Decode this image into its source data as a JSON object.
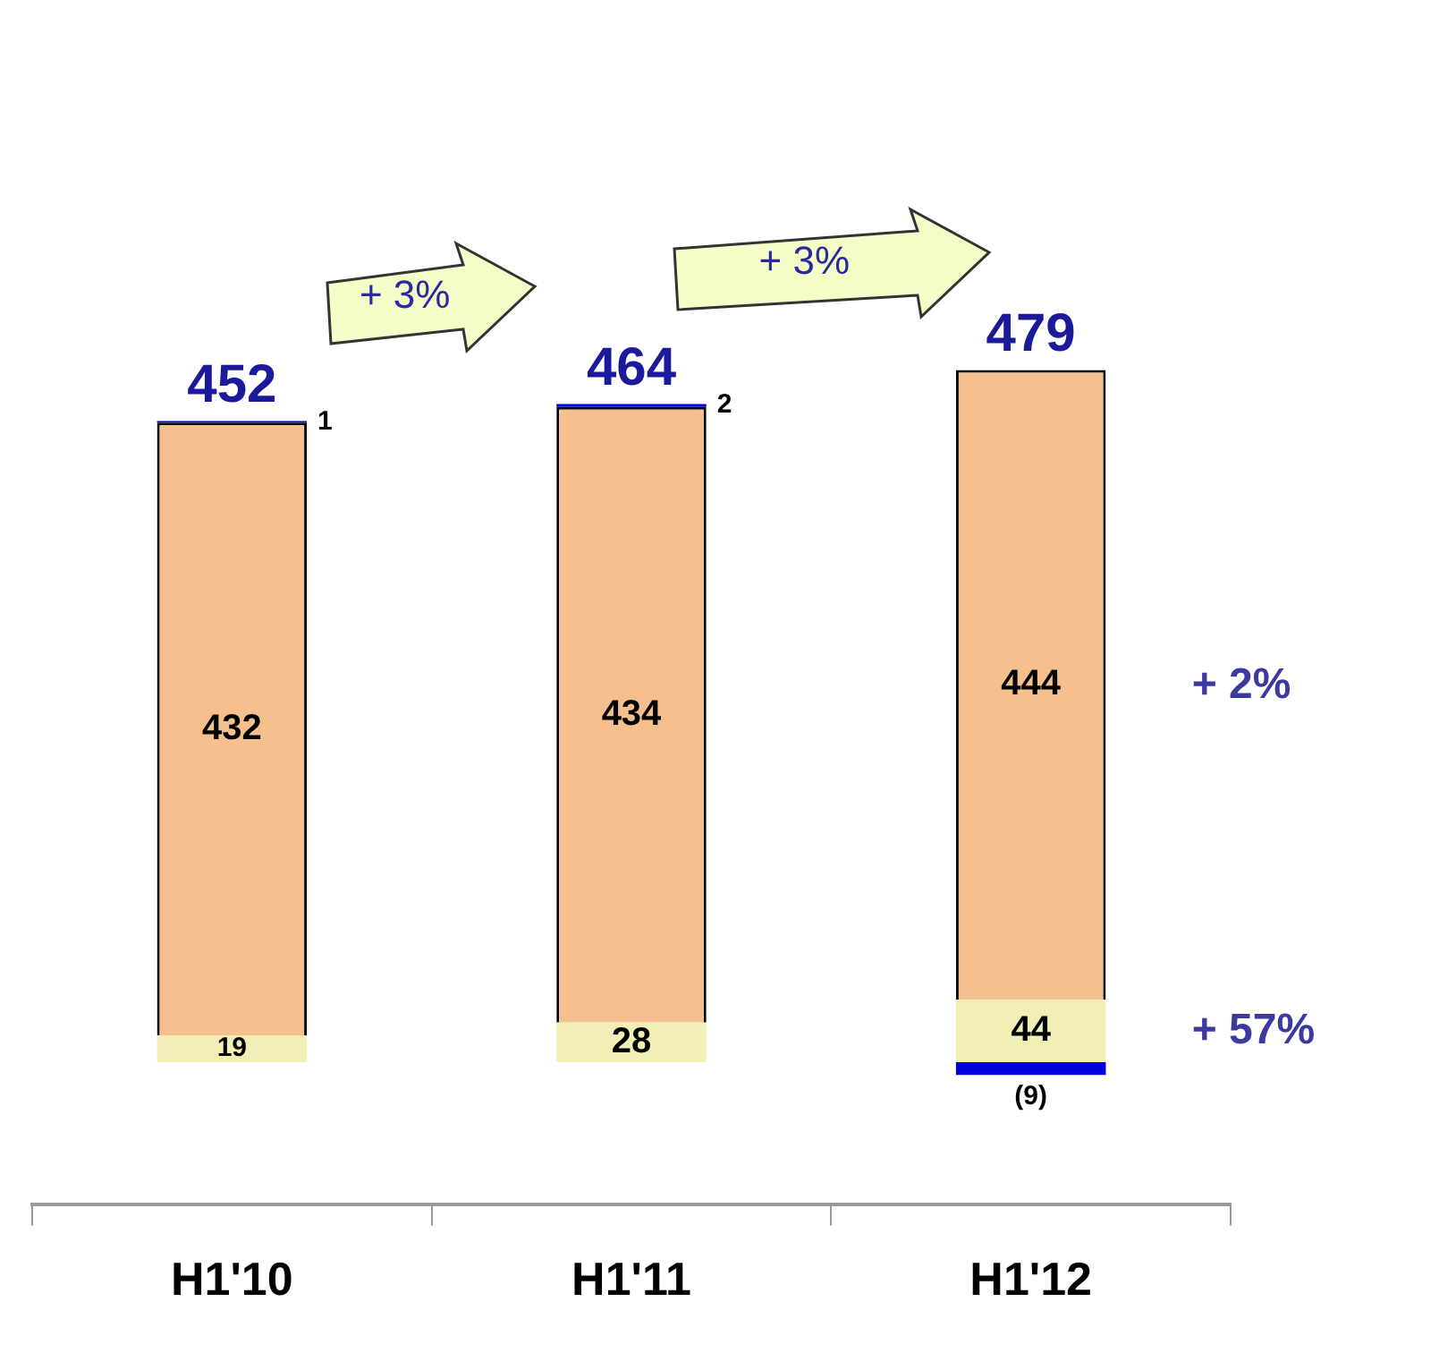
{
  "chart_data": {
    "type": "bar",
    "stacked": true,
    "categories": [
      "H1'10",
      "H1'11",
      "H1'12"
    ],
    "series": [
      {
        "color": "#f2efb6",
        "values": [
          19,
          28,
          44
        ]
      },
      {
        "color": "#f5c08e",
        "values": [
          432,
          434,
          444
        ]
      },
      {
        "color": "#0000dd",
        "values": [
          1,
          2,
          -9
        ],
        "value_labels": [
          "1",
          "2",
          "(9)"
        ]
      }
    ],
    "data_labels": true,
    "totals": [
      "452",
      "464",
      "479"
    ],
    "annotations": [
      "+ 3%",
      "+ 3%",
      "+ 2%",
      "+ 57%"
    ],
    "tick_labels": "x",
    "legend": false,
    "grid": false
  }
}
